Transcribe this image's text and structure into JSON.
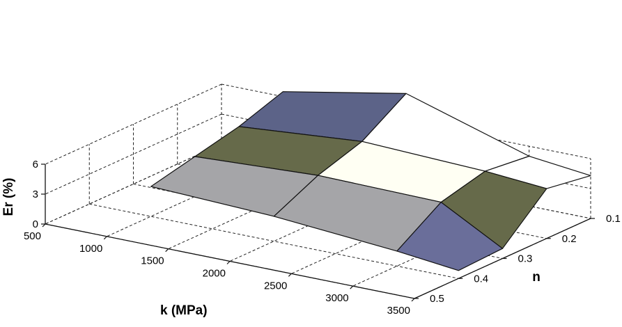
{
  "chart_data": {
    "type": "surface",
    "xlabel": "k (MPa)",
    "ylabel": "n",
    "zlabel": "Er (%)",
    "x": [
      500,
      1000,
      1500,
      2000,
      2500,
      3000,
      3500
    ],
    "x_ticks": [
      "500",
      "1000",
      "1500",
      "2000",
      "2500",
      "3000",
      "3500"
    ],
    "y_ticks": [
      "0.1",
      "0.2",
      "0.3",
      "0.4",
      "0.5"
    ],
    "z_ticks": [
      "0",
      "3",
      "6"
    ],
    "xlim": [
      500,
      3500
    ],
    "ylim": [
      0.1,
      0.5
    ],
    "zlim": [
      0,
      6
    ],
    "grid": true,
    "mesh_k": [
      1000,
      2000,
      3000,
      3500
    ],
    "mesh_n": [
      0.1,
      0.2,
      0.3,
      0.4
    ],
    "z": [
      [
        6.5,
        8.8,
        5.0,
        4.3
      ],
      [
        5.0,
        6.0,
        5.5,
        5.0
      ],
      [
        4.0,
        4.6,
        4.4,
        1.0
      ],
      [
        3.0,
        2.5,
        1.5,
        0.8
      ]
    ],
    "facet_colors": [
      [
        "#5c6388",
        "#ffffff",
        "#ffffff"
      ],
      [
        "#666a4a",
        "#fffff3",
        "#666a4a"
      ],
      [
        "#a5a5a8",
        "#a5a5a8",
        "#6a6e9a"
      ],
      [
        "#a5a5a8",
        "#a5a5a8",
        "#24294a"
      ]
    ]
  }
}
